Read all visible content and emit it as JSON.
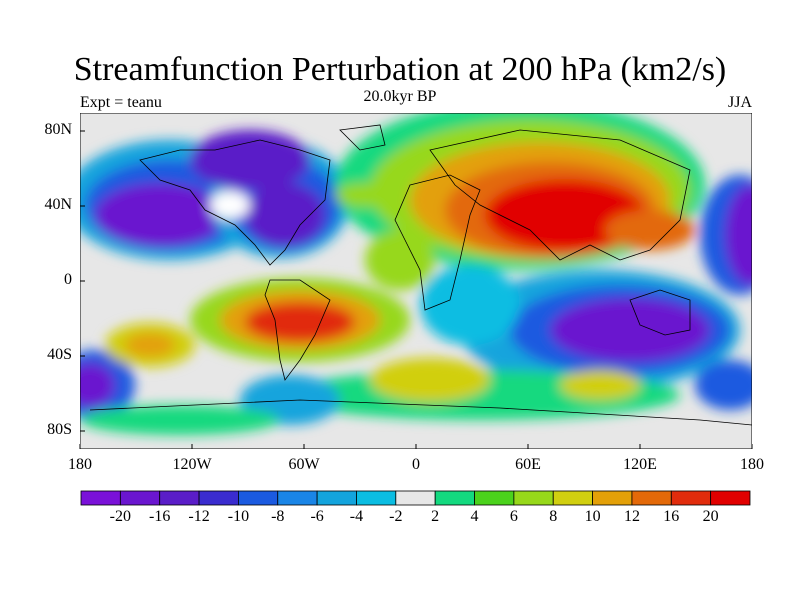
{
  "title": "Streamfunction Perturbation at 200 hPa (km2/s)",
  "subtitle": "20.0kyr BP",
  "left_label": "Expt = teanu",
  "right_label": "JJA",
  "y_ticks": [
    {
      "label": "80N",
      "lat": 80
    },
    {
      "label": "40N",
      "lat": 40
    },
    {
      "label": "0",
      "lat": 0
    },
    {
      "label": "40S",
      "lat": -40
    },
    {
      "label": "80S",
      "lat": -80
    }
  ],
  "x_ticks": [
    {
      "label": "180",
      "lon": -180
    },
    {
      "label": "120W",
      "lon": -120
    },
    {
      "label": "60W",
      "lon": -60
    },
    {
      "label": "0",
      "lon": 0
    },
    {
      "label": "60E",
      "lon": 60
    },
    {
      "label": "120E",
      "lon": 120
    },
    {
      "label": "180",
      "lon": 180
    }
  ],
  "colorbar": {
    "levels": [
      "-20",
      "-16",
      "-12",
      "-10",
      "-8",
      "-6",
      "-4",
      "-2",
      "2",
      "4",
      "6",
      "8",
      "10",
      "12",
      "16",
      "20"
    ],
    "colors": [
      "#7a11d8",
      "#6a16cf",
      "#5a1dc8",
      "#3a2ccf",
      "#1b5ae0",
      "#1a85e6",
      "#13a4dd",
      "#0bbde2",
      "#e7e7e7",
      "#13d97f",
      "#4bd21c",
      "#97d81a",
      "#d1cf10",
      "#e3a008",
      "#e36909",
      "#e12c0c",
      "#e10000"
    ]
  },
  "map": {
    "background": "#e7e7e7",
    "field_description": "Streamfunction perturbation anomalies"
  }
}
